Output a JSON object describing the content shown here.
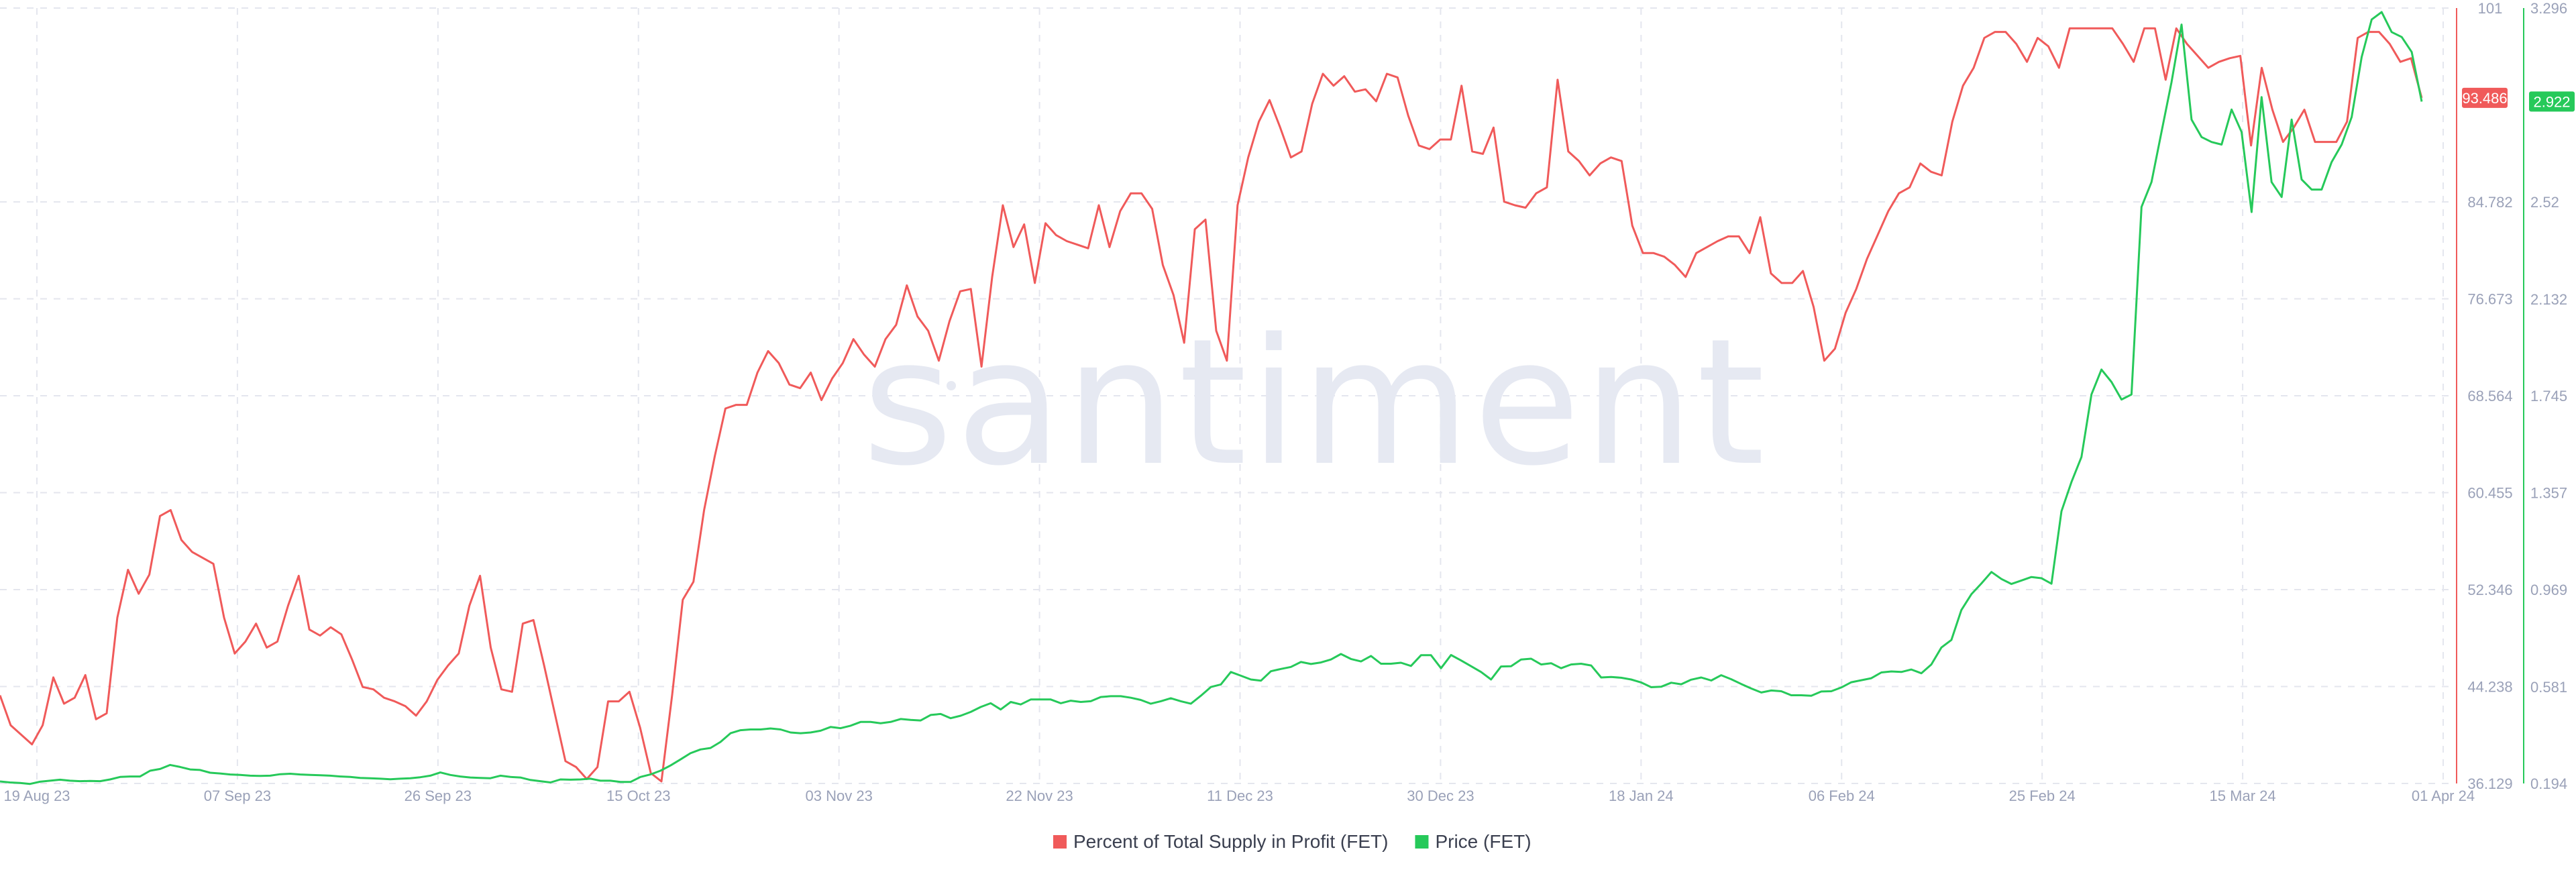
{
  "watermark": "santiment",
  "chart_data": {
    "type": "line",
    "x_tick_labels": [
      "19 Aug 23",
      "07 Sep 23",
      "26 Sep 23",
      "15 Oct 23",
      "03 Nov 23",
      "22 Nov 23",
      "11 Dec 23",
      "30 Dec 23",
      "18 Jan 24",
      "06 Feb 24",
      "25 Feb 24",
      "15 Mar 24",
      "01 Apr 24"
    ],
    "x_range": [
      "2023-08-17",
      "2024-03-31"
    ],
    "left_axis": {
      "ticks": [
        "36.129",
        "44.238",
        "52.346",
        "60.455",
        "68.564",
        "76.673",
        "84.782",
        "101"
      ],
      "range": [
        36.129,
        101
      ]
    },
    "right_axis": {
      "ticks": [
        "0.194",
        "0.581",
        "0.969",
        "1.357",
        "1.745",
        "2.132",
        "2.52",
        "3.296"
      ],
      "range": [
        0.194,
        3.296
      ]
    },
    "grid": true,
    "legend_position": "bottom-center",
    "series": [
      {
        "name": "Percent of Total Supply in Profit (FET)",
        "color": "#f05a5a",
        "axis": "left",
        "current_value": "93.486",
        "values": [
          43.5,
          41.0,
          40.2,
          39.4,
          41.0,
          45.0,
          42.8,
          43.3,
          45.2,
          41.5,
          42.0,
          50.0,
          54.0,
          52.0,
          53.6,
          58.5,
          59.0,
          56.5,
          55.5,
          55.0,
          54.5,
          50.0,
          47.0,
          48.0,
          49.5,
          47.5,
          48.0,
          51.0,
          53.5,
          49.0,
          48.5,
          49.2,
          48.6,
          46.5,
          44.2,
          44.0,
          43.3,
          43.0,
          42.6,
          41.8,
          43.0,
          44.8,
          46.0,
          47.0,
          51.0,
          53.5,
          47.5,
          44.0,
          43.8,
          49.5,
          49.8,
          46.0,
          42.0,
          38.0,
          37.5,
          36.5,
          37.5,
          43.0,
          43.0,
          43.8,
          40.8,
          37.0,
          36.3,
          43.5,
          51.5,
          53.0,
          59.0,
          63.5,
          67.5,
          67.8,
          67.8,
          70.5,
          72.3,
          71.3,
          69.5,
          69.2,
          70.5,
          68.2,
          70.0,
          71.3,
          73.3,
          72.0,
          71.0,
          73.3,
          74.5,
          77.8,
          75.2,
          74.0,
          71.5,
          74.8,
          77.3,
          77.5,
          71.0,
          78.5,
          84.5,
          81.0,
          82.9,
          78.0,
          83.0,
          82.0,
          81.5,
          81.2,
          80.9,
          84.5,
          81.0,
          84.0,
          85.5,
          85.5,
          84.2,
          79.5,
          77.0,
          73.0,
          82.5,
          83.3,
          74.0,
          71.5,
          84.5,
          88.5,
          91.5,
          93.3,
          91.0,
          88.5,
          89.0,
          93.0,
          95.5,
          94.5,
          95.3,
          94.0,
          94.2,
          93.2,
          95.5,
          95.2,
          92.0,
          89.5,
          89.2,
          90.0,
          90.0,
          94.5,
          89.0,
          88.8,
          91.0,
          84.8,
          84.5,
          84.3,
          85.5,
          86.0,
          95.0,
          89.0,
          88.2,
          87.0,
          88.0,
          88.5,
          88.2,
          82.8,
          80.5,
          80.5,
          80.2,
          79.5,
          78.5,
          80.5,
          81.0,
          81.5,
          81.9,
          81.9,
          80.5,
          83.5,
          78.8,
          78.0,
          78.0,
          79.0,
          76.0,
          71.5,
          72.5,
          75.5,
          77.5,
          80.0,
          82.0,
          84.0,
          85.5,
          86.0,
          88.0,
          87.3,
          87.0,
          91.5,
          94.5,
          96.0,
          98.5,
          99.0,
          99.0,
          98.0,
          96.5,
          98.5,
          97.8,
          96.0,
          99.3,
          99.3,
          99.3,
          99.3,
          99.3,
          98.0,
          96.5,
          99.3,
          99.3,
          95.0,
          99.3,
          98.0,
          97.0,
          96.0,
          96.5,
          96.8,
          97.0,
          89.5,
          96.0,
          92.5,
          89.8,
          91.0,
          92.5,
          89.8,
          89.8,
          89.8,
          91.5,
          98.5,
          99.0,
          99.0,
          98.0,
          96.5,
          96.8,
          93.486
        ]
      },
      {
        "name": "Price (FET)",
        "color": "#26c95a",
        "axis": "right",
        "current_value": "2.922",
        "values": [
          0.202,
          0.198,
          0.196,
          0.192,
          0.201,
          0.205,
          0.209,
          0.205,
          0.203,
          0.204,
          0.203,
          0.21,
          0.22,
          0.222,
          0.222,
          0.245,
          0.252,
          0.268,
          0.26,
          0.25,
          0.248,
          0.237,
          0.234,
          0.23,
          0.228,
          0.225,
          0.224,
          0.225,
          0.231,
          0.233,
          0.23,
          0.228,
          0.227,
          0.225,
          0.222,
          0.22,
          0.216,
          0.215,
          0.213,
          0.211,
          0.213,
          0.215,
          0.219,
          0.225,
          0.238,
          0.228,
          0.222,
          0.218,
          0.216,
          0.215,
          0.225,
          0.22,
          0.218,
          0.208,
          0.203,
          0.198,
          0.21,
          0.209,
          0.21,
          0.213,
          0.205,
          0.205,
          0.2,
          0.2,
          0.22,
          0.23,
          0.245,
          0.266,
          0.29,
          0.315,
          0.33,
          0.336,
          0.36,
          0.395,
          0.407,
          0.41,
          0.41,
          0.414,
          0.41,
          0.398,
          0.395,
          0.398,
          0.405,
          0.42,
          0.415,
          0.425,
          0.44,
          0.44,
          0.435,
          0.44,
          0.452,
          0.448,
          0.446,
          0.468,
          0.472,
          0.455,
          0.465,
          0.48,
          0.5,
          0.515,
          0.49,
          0.52,
          0.51,
          0.53,
          0.53,
          0.53,
          0.515,
          0.525,
          0.52,
          0.523,
          0.54,
          0.543,
          0.543,
          0.537,
          0.528,
          0.513,
          0.523,
          0.535,
          0.523,
          0.513,
          0.545,
          0.58,
          0.59,
          0.64,
          0.625,
          0.61,
          0.605,
          0.643,
          0.652,
          0.66,
          0.68,
          0.672,
          0.678,
          0.69,
          0.712,
          0.692,
          0.682,
          0.704,
          0.673,
          0.673,
          0.677,
          0.664,
          0.707,
          0.707,
          0.655,
          0.708,
          0.686,
          0.663,
          0.64,
          0.61,
          0.662,
          0.663,
          0.69,
          0.693,
          0.67,
          0.675,
          0.655,
          0.67,
          0.673,
          0.666,
          0.618,
          0.62,
          0.617,
          0.61,
          0.598,
          0.579,
          0.581,
          0.597,
          0.591,
          0.609,
          0.618,
          0.606,
          0.627,
          0.611,
          0.592,
          0.574,
          0.558,
          0.566,
          0.563,
          0.547,
          0.547,
          0.545,
          0.562,
          0.563,
          0.578,
          0.599,
          0.607,
          0.615,
          0.638,
          0.642,
          0.64,
          0.65,
          0.635,
          0.67,
          0.738,
          0.768,
          0.888,
          0.951,
          0.994,
          1.04,
          1.012,
          0.992,
          1.006,
          1.02,
          1.015,
          0.993,
          1.283,
          1.4,
          1.5,
          1.75,
          1.85,
          1.8,
          1.73,
          1.75,
          2.5,
          2.6,
          2.8,
          3.0,
          3.23,
          2.85,
          2.78,
          2.76,
          2.75,
          2.89,
          2.8,
          2.48,
          2.94,
          2.6,
          2.54,
          2.85,
          2.61,
          2.57,
          2.57,
          2.68,
          2.75,
          2.86,
          3.1,
          3.25,
          3.28,
          3.2,
          3.18,
          3.12,
          2.922
        ]
      }
    ]
  }
}
